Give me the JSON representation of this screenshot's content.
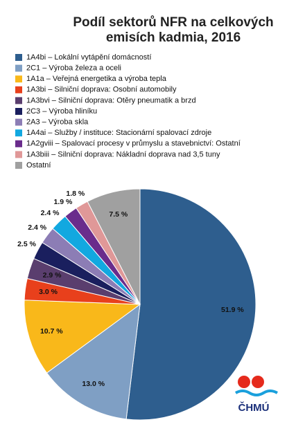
{
  "chart_data": {
    "type": "pie",
    "title": "Podíl sektorů NFR na celkových emisích kadmia, 2016",
    "categories": [
      "1A4bi – Lokální vytápění domácností",
      "2C1 – Výroba železa a oceli",
      "1A1a – Veřejná energetika a výroba tepla",
      "1A3bi – Silniční doprava: Osobní automobily",
      "1A3bvi – Silniční doprava: Otěry pneumatik a brzd",
      "2C3 – Výroba hliníku",
      "2A3 – Výroba skla",
      "1A4ai – Služby / instituce: Stacionární spalovací zdroje",
      "1A2gviii – Spalovací procesy v průmyslu a stavebnictví: Ostatní",
      "1A3biii – Silniční doprava: Nákladní doprava nad 3,5 tuny",
      "Ostatní"
    ],
    "values": [
      51.9,
      13.0,
      10.7,
      3.0,
      2.9,
      2.5,
      2.4,
      2.4,
      1.9,
      1.8,
      7.5
    ],
    "value_labels": [
      "51.9 %",
      "13.0 %",
      "10.7 %",
      "3.0 %",
      "2.9 %",
      "2.5 %",
      "2.4 %",
      "2.4 %",
      "1.9 %",
      "1.8 %",
      "7.5 %"
    ],
    "colors": [
      "#2e5e8e",
      "#7f9fc4",
      "#f9b81a",
      "#e8401c",
      "#5a3e6e",
      "#1a1f5e",
      "#8c7db5",
      "#12a8e0",
      "#6a2c8c",
      "#e09898",
      "#a0a0a0"
    ]
  },
  "logo": "ČHMÚ"
}
